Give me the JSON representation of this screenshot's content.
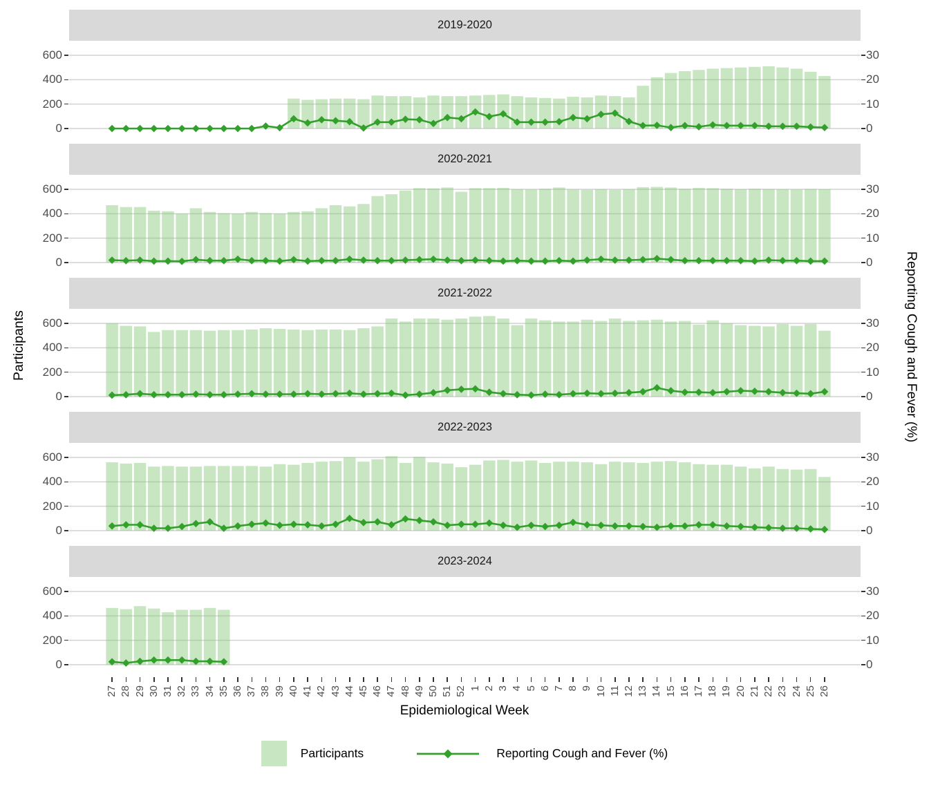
{
  "colors": {
    "bar_fill": "rgba(134,200,118,0.45)",
    "bar_fill_solid": "#c8e6c1",
    "line": "#33a02c",
    "strip_bg": "#d9d9d9",
    "grid": "#d2d2d2",
    "axis_text": "#4d4d4d",
    "tick": "#333333"
  },
  "chart_data": {
    "type": "bar+line_faceted",
    "xlabel": "Epidemiological Week",
    "ylabel_left": "Participants",
    "ylabel_right": "Reporting Cough and Fever (%)",
    "ylim_left": [
      0,
      600
    ],
    "ylim_right": [
      0,
      30
    ],
    "y_left_ticks": [
      600,
      400,
      200,
      0
    ],
    "y_right_ticks": [
      30,
      20,
      10,
      0
    ],
    "grid": "horizontal-major-only",
    "legend_position": "bottom",
    "legend": {
      "bar": "Participants",
      "line": "Reporting Cough and Fever (%)"
    },
    "x": [
      27,
      28,
      29,
      30,
      31,
      32,
      33,
      34,
      35,
      36,
      37,
      38,
      39,
      40,
      41,
      42,
      43,
      44,
      45,
      46,
      47,
      48,
      49,
      50,
      51,
      52,
      1,
      2,
      3,
      4,
      5,
      6,
      7,
      8,
      9,
      10,
      11,
      12,
      13,
      14,
      15,
      16,
      17,
      18,
      19,
      20,
      21,
      22,
      23,
      24,
      25,
      26
    ],
    "facets": [
      {
        "season": "2019-2020",
        "participants": [
          null,
          null,
          null,
          null,
          null,
          null,
          null,
          null,
          null,
          null,
          null,
          null,
          null,
          245,
          235,
          240,
          245,
          245,
          240,
          270,
          265,
          265,
          255,
          270,
          265,
          265,
          270,
          275,
          280,
          265,
          255,
          250,
          245,
          260,
          255,
          270,
          265,
          255,
          350,
          420,
          455,
          470,
          480,
          490,
          495,
          500,
          505,
          510,
          500,
          490,
          465,
          430
        ],
        "cough_fever_pct": [
          0,
          0,
          0,
          0,
          0,
          0,
          0,
          0,
          0,
          0,
          0,
          1.0,
          0.3,
          4.0,
          2.3,
          3.6,
          3.2,
          2.8,
          0.2,
          2.6,
          2.6,
          3.8,
          3.6,
          2.1,
          4.5,
          4.0,
          6.8,
          4.9,
          6.0,
          2.6,
          2.6,
          2.6,
          2.8,
          4.5,
          4.0,
          5.8,
          6.3,
          2.9,
          1.2,
          1.3,
          0.4,
          1.2,
          0.7,
          1.5,
          1.2,
          1.2,
          1.2,
          0.9,
          0.9,
          0.9,
          0.6,
          0.4
        ]
      },
      {
        "season": "2020-2021",
        "participants": [
          470,
          455,
          455,
          425,
          420,
          400,
          445,
          415,
          405,
          400,
          415,
          405,
          400,
          415,
          420,
          445,
          470,
          460,
          480,
          545,
          560,
          590,
          610,
          608,
          615,
          580,
          610,
          610,
          612,
          600,
          598,
          605,
          615,
          598,
          596,
          600,
          596,
          600,
          618,
          620,
          615,
          605,
          612,
          610,
          605,
          600,
          605,
          602,
          600,
          598,
          602,
          600
        ],
        "cough_fever_pct": [
          1.0,
          0.8,
          1.0,
          0.6,
          0.6,
          0.5,
          1.2,
          0.8,
          0.8,
          1.4,
          0.8,
          0.8,
          0.6,
          1.2,
          0.6,
          0.8,
          0.8,
          1.4,
          1.0,
          0.8,
          0.8,
          1.0,
          1.2,
          1.4,
          1.0,
          0.8,
          1.0,
          0.8,
          0.6,
          0.8,
          0.6,
          0.6,
          0.8,
          0.6,
          1.0,
          1.4,
          1.0,
          1.0,
          1.2,
          1.6,
          1.2,
          0.8,
          0.8,
          0.8,
          0.8,
          0.8,
          0.6,
          1.0,
          0.8,
          0.8,
          0.6,
          0.6
        ]
      },
      {
        "season": "2021-2022",
        "participants": [
          600,
          580,
          575,
          530,
          545,
          545,
          545,
          540,
          545,
          545,
          550,
          560,
          555,
          550,
          545,
          550,
          550,
          545,
          560,
          575,
          640,
          615,
          640,
          640,
          630,
          640,
          655,
          660,
          640,
          585,
          640,
          625,
          615,
          615,
          630,
          620,
          640,
          620,
          625,
          630,
          615,
          620,
          590,
          625,
          600,
          585,
          580,
          575,
          595,
          580,
          595,
          540
        ],
        "cough_fever_pct": [
          0.6,
          0.8,
          1.2,
          0.8,
          0.8,
          0.8,
          1.0,
          0.8,
          0.8,
          1.0,
          1.2,
          1.0,
          1.0,
          1.0,
          1.2,
          1.0,
          1.2,
          1.4,
          1.0,
          1.2,
          1.4,
          0.6,
          1.0,
          1.6,
          2.6,
          3.0,
          3.2,
          1.8,
          1.2,
          0.8,
          0.6,
          1.0,
          0.8,
          1.2,
          1.4,
          1.2,
          1.4,
          1.6,
          2.0,
          3.6,
          2.4,
          1.8,
          1.8,
          1.6,
          2.0,
          2.4,
          2.2,
          2.0,
          1.6,
          1.4,
          1.2,
          2.0
        ]
      },
      {
        "season": "2022-2023",
        "participants": [
          560,
          550,
          555,
          525,
          530,
          525,
          525,
          530,
          530,
          530,
          530,
          525,
          545,
          540,
          555,
          565,
          570,
          600,
          565,
          585,
          610,
          555,
          605,
          560,
          550,
          520,
          540,
          575,
          580,
          565,
          575,
          555,
          565,
          565,
          560,
          545,
          565,
          560,
          555,
          565,
          570,
          560,
          545,
          540,
          540,
          525,
          510,
          525,
          505,
          500,
          505,
          440
        ],
        "cough_fever_pct": [
          1.9,
          2.4,
          2.4,
          1.0,
          1.0,
          1.7,
          2.9,
          3.6,
          1.0,
          1.9,
          2.6,
          3.1,
          2.2,
          2.6,
          2.4,
          1.9,
          2.6,
          5.0,
          3.3,
          3.6,
          2.4,
          4.8,
          4.2,
          3.6,
          2.2,
          2.6,
          2.6,
          3.1,
          2.2,
          1.4,
          2.2,
          1.7,
          2.2,
          3.4,
          2.4,
          2.2,
          1.9,
          1.9,
          1.7,
          1.4,
          1.9,
          1.9,
          2.4,
          2.4,
          1.9,
          1.7,
          1.4,
          1.2,
          1.0,
          1.0,
          0.7,
          0.5
        ]
      },
      {
        "season": "2023-2024",
        "participants": [
          465,
          455,
          480,
          460,
          430,
          450,
          450,
          465,
          450,
          null,
          null,
          null,
          null,
          null,
          null,
          null,
          null,
          null,
          null,
          null,
          null,
          null,
          null,
          null,
          null,
          null,
          null,
          null,
          null,
          null,
          null,
          null,
          null,
          null,
          null,
          null,
          null,
          null,
          null,
          null,
          null,
          null,
          null,
          null,
          null,
          null,
          null,
          null,
          null,
          null,
          null,
          null
        ],
        "cough_fever_pct": [
          1.2,
          0.7,
          1.4,
          1.9,
          1.9,
          1.9,
          1.4,
          1.4,
          1.2,
          null,
          null,
          null,
          null,
          null,
          null,
          null,
          null,
          null,
          null,
          null,
          null,
          null,
          null,
          null,
          null,
          null,
          null,
          null,
          null,
          null,
          null,
          null,
          null,
          null,
          null,
          null,
          null,
          null,
          null,
          null,
          null,
          null,
          null,
          null,
          null,
          null,
          null,
          null,
          null,
          null,
          null,
          null
        ]
      }
    ]
  }
}
